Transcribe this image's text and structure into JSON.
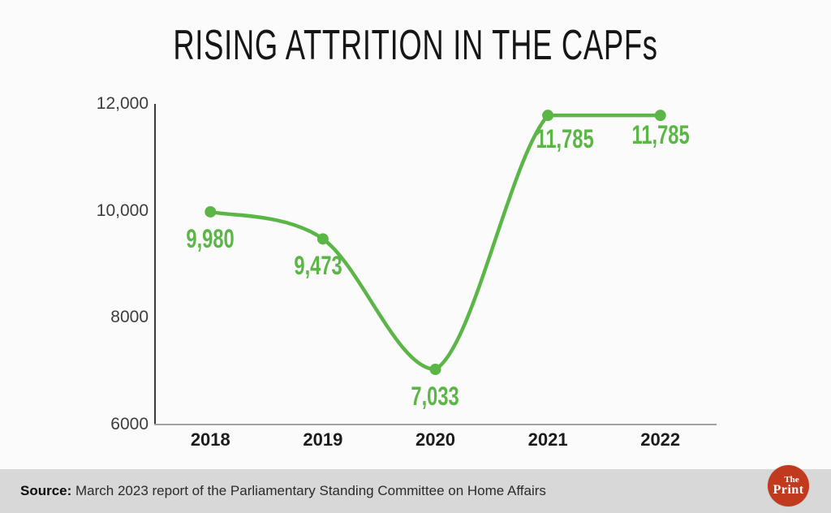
{
  "title": "RISING ATTRITION IN THE CAPFs",
  "source": {
    "prefix": "Source:",
    "text": " March 2023 report of the Parliamentary Standing Committee on Home Affairs"
  },
  "logo": {
    "line1": "The",
    "line2": "Print",
    "bg_color": "#c23a1d"
  },
  "colors": {
    "accent_green": "#5bb647",
    "axis_dark": "#3a3a3a",
    "axis_light": "#a3a3a3",
    "background": "#fbfbfb",
    "footer_bg": "#d8d8d8"
  },
  "chart_data": {
    "type": "line",
    "title": "RISING ATTRITION IN THE CAPFs",
    "categories": [
      "2018",
      "2019",
      "2020",
      "2021",
      "2022"
    ],
    "values": [
      9980,
      9473,
      7033,
      11785,
      11785
    ],
    "point_labels": [
      "9,980",
      "9,473",
      "7,033",
      "11,785",
      "11,785"
    ],
    "xlabel": "",
    "ylabel": "",
    "ylim": [
      6000,
      12000
    ],
    "yticks": [
      {
        "value": 12000,
        "label": "12,000"
      },
      {
        "value": 10000,
        "label": "10,000"
      },
      {
        "value": 8000,
        "label": "8000"
      },
      {
        "value": 6000,
        "label": "6000"
      }
    ],
    "grid": false,
    "legend": null,
    "series_color": "#5bb647"
  }
}
